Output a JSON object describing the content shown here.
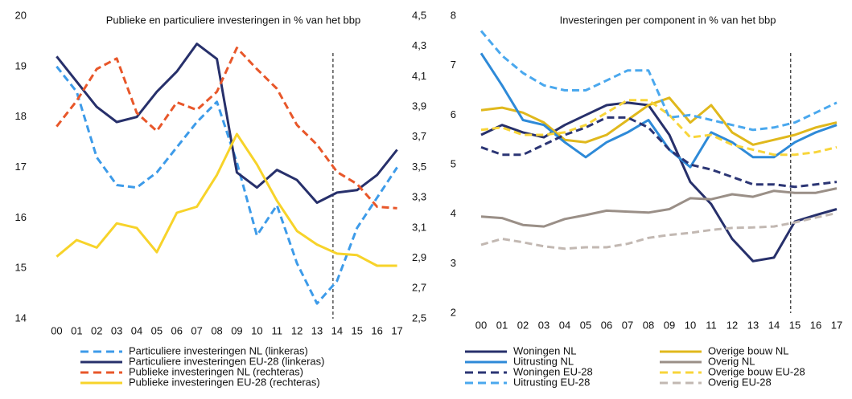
{
  "chart_data": [
    {
      "type": "line",
      "title": "Publieke en particuliere investeringen in % van het bbp",
      "categories": [
        "00",
        "01",
        "02",
        "03",
        "04",
        "05",
        "06",
        "07",
        "08",
        "09",
        "10",
        "11",
        "12",
        "13",
        "14",
        "15",
        "16",
        "17"
      ],
      "ylim": [
        14,
        20
      ],
      "yticks": [
        14,
        15,
        16,
        17,
        18,
        19,
        20
      ],
      "y2lim": [
        2.5,
        4.5
      ],
      "y2ticks": [
        {
          "value": 2.5,
          "label": "2,5"
        },
        {
          "value": 2.7,
          "label": "2,7"
        },
        {
          "value": 2.9,
          "label": "2,9"
        },
        {
          "value": 3.1,
          "label": "3,1"
        },
        {
          "value": 3.3,
          "label": "3,3"
        },
        {
          "value": 3.5,
          "label": "3,5"
        },
        {
          "value": 3.7,
          "label": "3,7"
        },
        {
          "value": 3.9,
          "label": "3,9"
        },
        {
          "value": 4.1,
          "label": "4,1"
        },
        {
          "value": 4.3,
          "label": "4,3"
        },
        {
          "value": 4.5,
          "label": "4,5"
        }
      ],
      "grid": false,
      "series": [
        {
          "name": "Particuliere investeringen NL (linkeras)",
          "color": "#3d9be9",
          "style": "dashed",
          "values": [
            19.0,
            18.5,
            17.2,
            16.65,
            16.6,
            16.9,
            17.4,
            17.9,
            18.3,
            17.1,
            15.65,
            16.25,
            15.1,
            14.3,
            14.75,
            15.8,
            16.4,
            17.0
          ]
        },
        {
          "name": "Particuliere investeringen EU-28 (linkeras)",
          "color": "#27306b",
          "style": "solid",
          "values": [
            19.2,
            18.7,
            18.2,
            17.9,
            18.0,
            18.5,
            18.9,
            19.45,
            19.15,
            16.9,
            16.6,
            16.95,
            16.75,
            16.3,
            16.5,
            16.55,
            16.85,
            17.35
          ]
        },
        {
          "name": "Publieke investeringen NL (rechteras)",
          "color": "#e8572a",
          "style": "dashed",
          "axis": "y2",
          "values": [
            3.77,
            3.94,
            4.15,
            4.22,
            3.86,
            3.74,
            3.93,
            3.88,
            4.0,
            4.29,
            4.15,
            4.02,
            3.78,
            3.65,
            3.47,
            3.39,
            3.24,
            3.23
          ]
        },
        {
          "name": "Publieke investeringen EU-28 (rechteras)",
          "color": "#f7d32a",
          "style": "solid",
          "axis": "y2",
          "values": [
            2.91,
            3.02,
            2.97,
            3.13,
            3.1,
            2.94,
            3.2,
            3.24,
            3.45,
            3.72,
            3.52,
            3.28,
            3.08,
            2.99,
            2.93,
            2.92,
            2.85,
            2.85
          ]
        }
      ]
    },
    {
      "type": "line",
      "title": "Investeringen per component in % van het bbp",
      "categories": [
        "00",
        "01",
        "02",
        "03",
        "04",
        "05",
        "06",
        "07",
        "08",
        "09",
        "10",
        "11",
        "12",
        "13",
        "14",
        "15",
        "16",
        "17"
      ],
      "ylim": [
        2,
        8
      ],
      "yticks": [
        2,
        3,
        4,
        5,
        6,
        7,
        8
      ],
      "grid": false,
      "series": [
        {
          "name": "Woningen NL",
          "color": "#27306b",
          "style": "solid",
          "values": [
            5.6,
            5.8,
            5.65,
            5.55,
            5.8,
            6.0,
            6.2,
            6.25,
            6.2,
            5.6,
            4.65,
            4.2,
            3.5,
            3.05,
            3.12,
            3.85,
            3.98,
            4.1
          ]
        },
        {
          "name": "Overige bouw NL",
          "color": "#e0b81c",
          "style": "solid",
          "values": [
            6.1,
            6.15,
            6.05,
            5.85,
            5.5,
            5.45,
            5.6,
            5.9,
            6.2,
            6.35,
            5.85,
            6.2,
            5.65,
            5.4,
            5.5,
            5.6,
            5.75,
            5.85
          ]
        },
        {
          "name": "Uitrusting NL",
          "color": "#2e8ad8",
          "style": "solid",
          "values": [
            7.25,
            6.6,
            5.9,
            5.8,
            5.45,
            5.15,
            5.45,
            5.65,
            5.9,
            5.3,
            4.95,
            5.65,
            5.45,
            5.15,
            5.15,
            5.45,
            5.65,
            5.8
          ]
        },
        {
          "name": "Overig NL",
          "color": "#9a8f87",
          "style": "solid",
          "values": [
            3.95,
            3.92,
            3.78,
            3.75,
            3.9,
            3.98,
            4.07,
            4.05,
            4.03,
            4.1,
            4.32,
            4.3,
            4.4,
            4.35,
            4.47,
            4.43,
            4.43,
            4.52
          ]
        },
        {
          "name": "Woningen EU-28",
          "color": "#2b3574",
          "style": "dashed",
          "values": [
            5.35,
            5.2,
            5.2,
            5.4,
            5.6,
            5.75,
            5.95,
            5.95,
            5.75,
            5.3,
            5.0,
            4.9,
            4.75,
            4.6,
            4.6,
            4.55,
            4.6,
            4.65
          ]
        },
        {
          "name": "Overige bouw EU-28",
          "color": "#f8d53a",
          "style": "dashed",
          "values": [
            5.7,
            5.75,
            5.6,
            5.6,
            5.65,
            5.8,
            6.05,
            6.3,
            6.3,
            6.0,
            5.55,
            5.6,
            5.4,
            5.3,
            5.2,
            5.2,
            5.25,
            5.35
          ]
        },
        {
          "name": "Uitrusting EU-28",
          "color": "#4aa8ee",
          "style": "dashed",
          "values": [
            7.7,
            7.2,
            6.85,
            6.6,
            6.5,
            6.5,
            6.7,
            6.9,
            6.9,
            5.95,
            6.0,
            5.9,
            5.8,
            5.7,
            5.75,
            5.85,
            6.05,
            6.25
          ]
        },
        {
          "name": "Overig EU-28",
          "color": "#c2b8b2",
          "style": "dashed",
          "values": [
            3.38,
            3.5,
            3.43,
            3.35,
            3.3,
            3.33,
            3.33,
            3.4,
            3.52,
            3.58,
            3.62,
            3.68,
            3.72,
            3.73,
            3.75,
            3.83,
            3.93,
            4.02
          ]
        }
      ]
    }
  ]
}
